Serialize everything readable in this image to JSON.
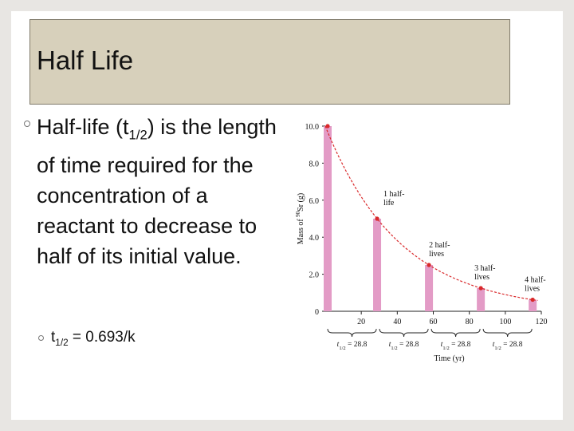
{
  "slide": {
    "title": "Half Life",
    "bullet": {
      "lead": "Half-life (t",
      "sub": "1/2",
      "rest": ") is the length of time required for the concentration of a reactant to decrease to half of its initial value."
    },
    "formula": {
      "lead": "t",
      "sub": "1/2",
      "rest": " = 0.693/k"
    }
  },
  "chart_data": {
    "type": "bar",
    "xlabel": "Time (yr)",
    "ylabel_prefix": "Mass of ",
    "ylabel_isotope_mass": "90",
    "ylabel_element": "Sr (g)",
    "x_ticks": [
      "20",
      "40",
      "60",
      "80",
      "100",
      "120"
    ],
    "y_ticks": [
      "0",
      "2.0",
      "4.0",
      "6.0",
      "8.0",
      "10.0"
    ],
    "xlim": [
      0,
      120
    ],
    "ylim": [
      0,
      10
    ],
    "points": [
      {
        "x": 0,
        "y": 10.0
      },
      {
        "x": 28.8,
        "y": 5.0
      },
      {
        "x": 57.6,
        "y": 2.5
      },
      {
        "x": 86.4,
        "y": 1.25
      },
      {
        "x": 115.2,
        "y": 0.625
      }
    ],
    "curve_color": "#d9292b",
    "bar_color": "#e39bc6",
    "annotations": [
      {
        "lines": [
          "1 half-",
          "life"
        ],
        "x": 28.8,
        "y": 5.0
      },
      {
        "lines": [
          "2 half-",
          "lives"
        ],
        "x": 57.6,
        "y": 2.5
      },
      {
        "lines": [
          "3 half-",
          "lives"
        ],
        "x": 86.4,
        "y": 1.25
      },
      {
        "lines": [
          "4 half-",
          "lives"
        ],
        "x": 115.2,
        "y": 0.625
      }
    ],
    "brace_label": {
      "lead": "t",
      "sub": "1/2",
      "rest": " = 28.8"
    }
  }
}
